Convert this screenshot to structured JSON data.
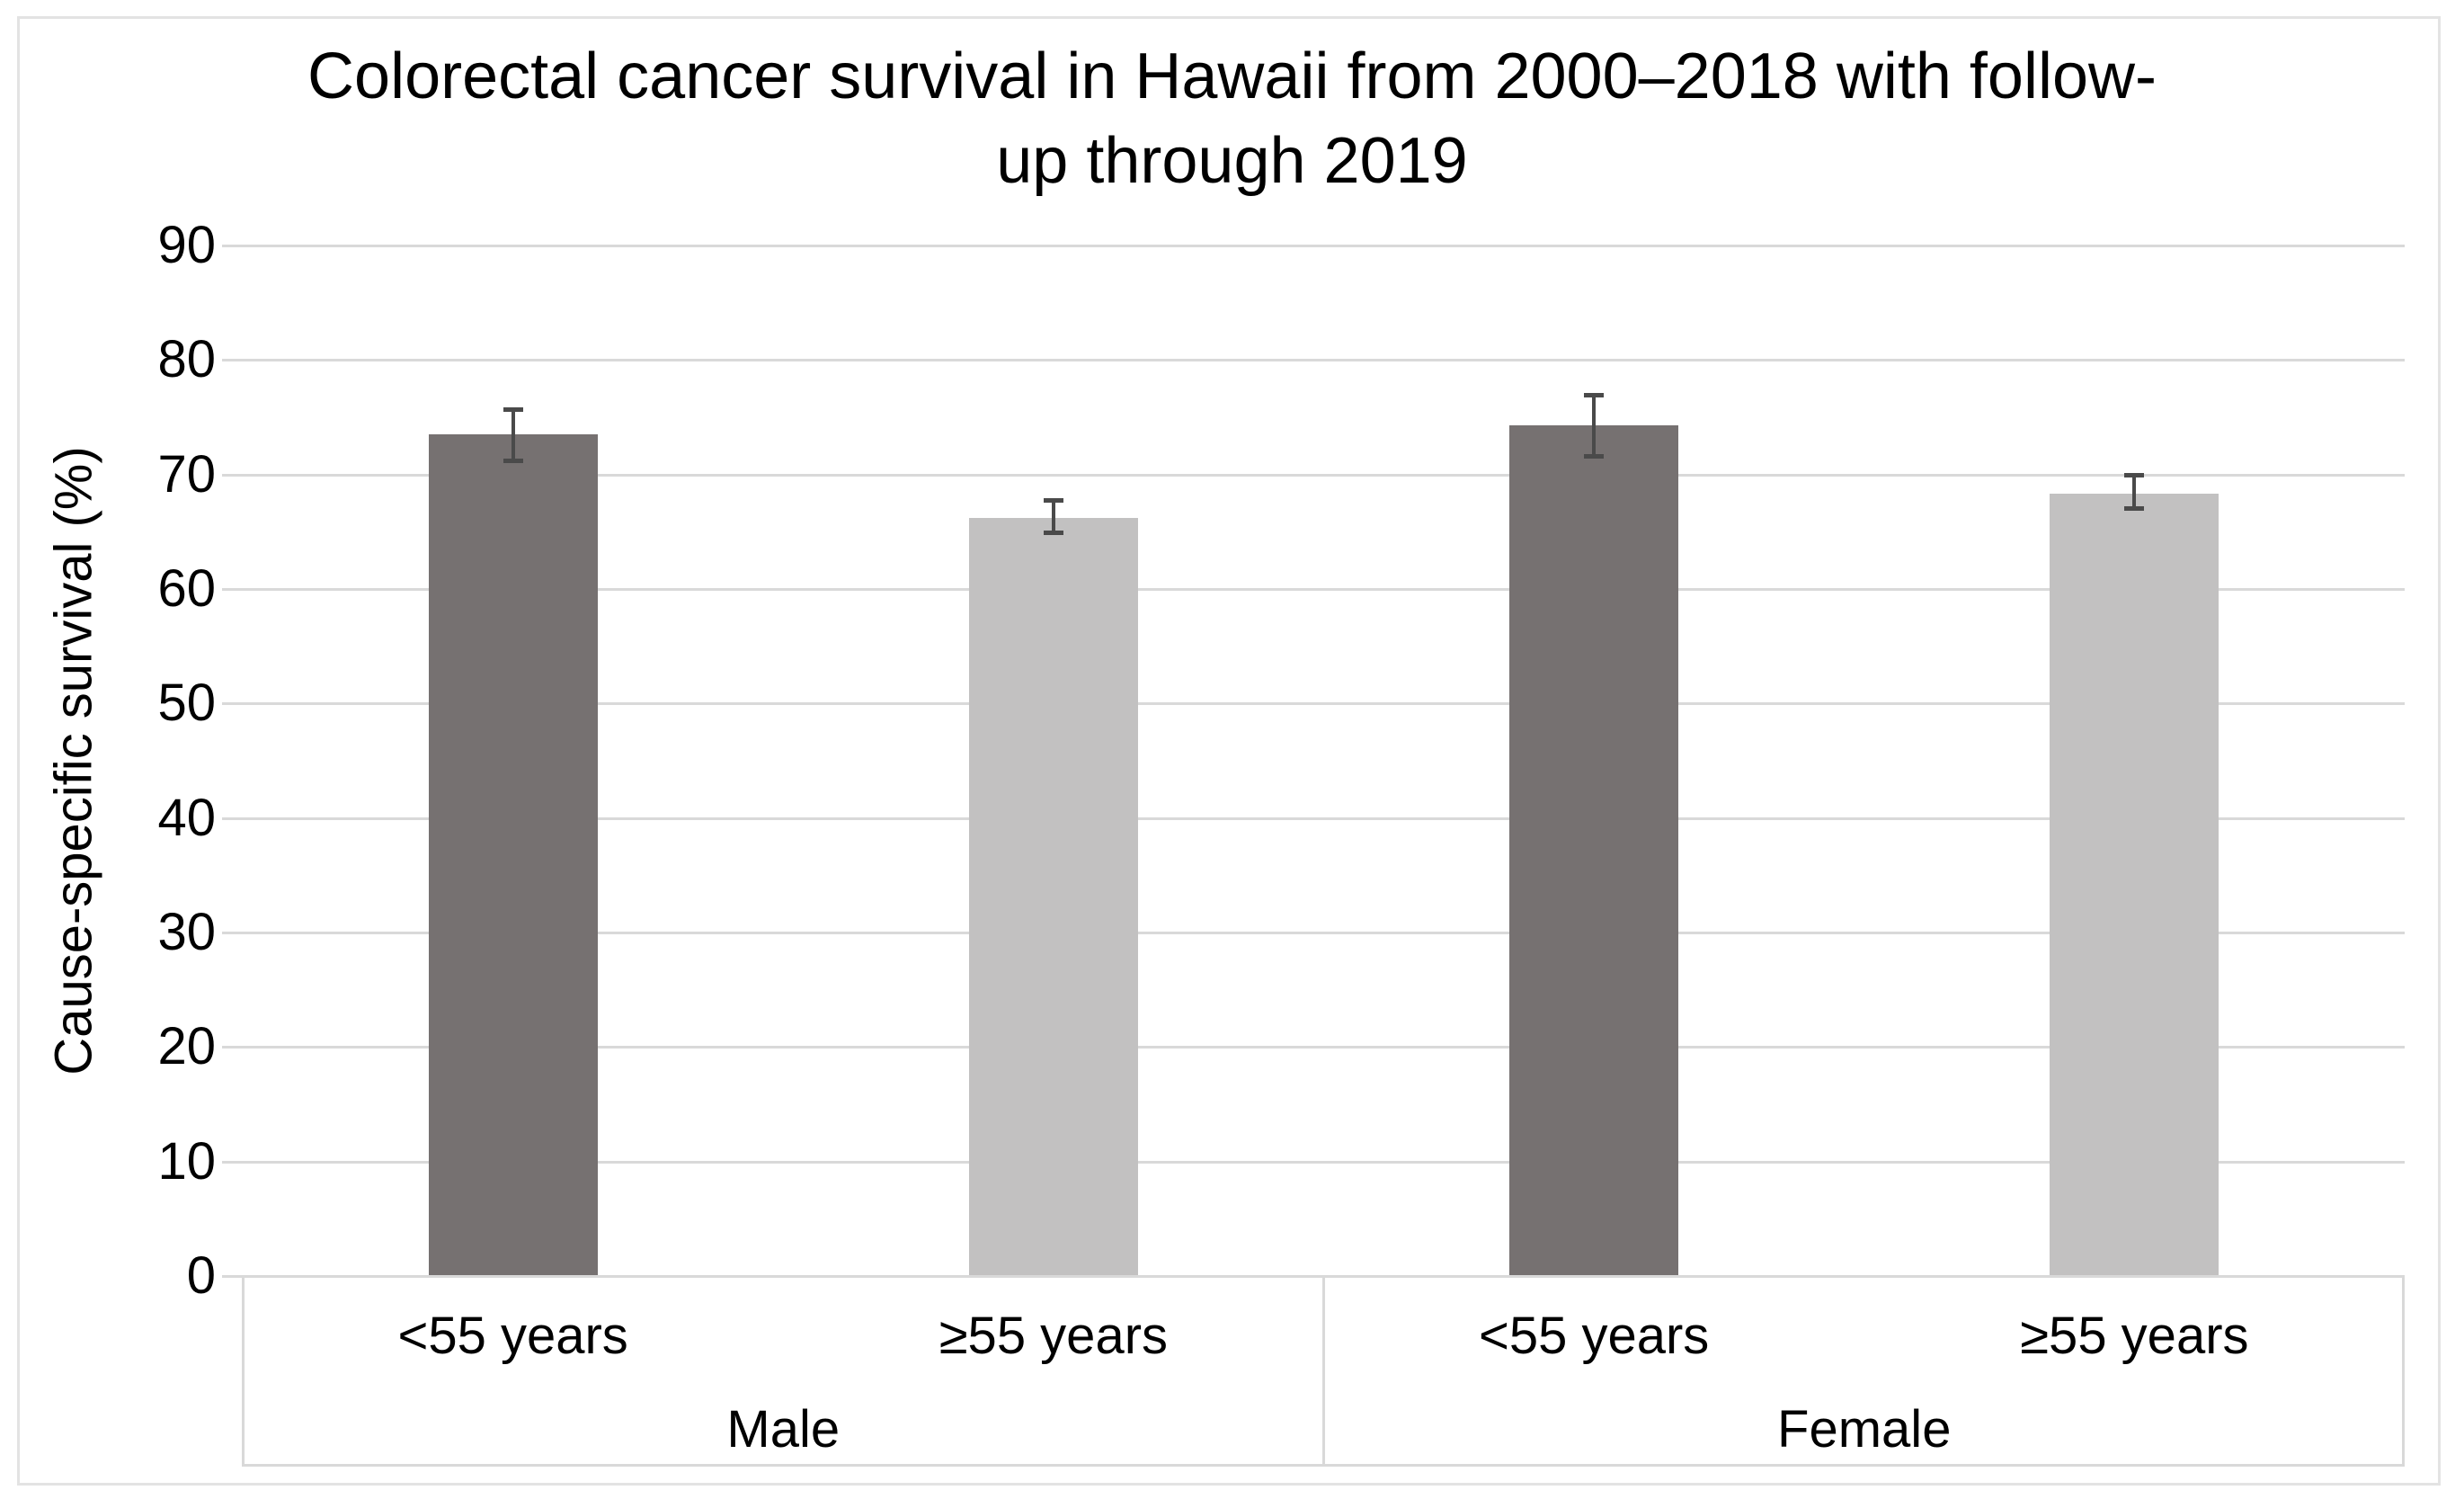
{
  "chart_data": {
    "type": "bar",
    "title": "Colorectal cancer survival in Hawaii from 2000–2018 with follow-up through 2019",
    "title_lines": [
      "Colorectal cancer survival in Hawaii from 2000–2018 with follow-",
      "up through 2019"
    ],
    "xlabel": "",
    "ylabel": "Cause-specific survival (%)",
    "ylim": [
      0,
      90
    ],
    "ytick_step": 10,
    "yticks": [
      0,
      10,
      20,
      30,
      40,
      50,
      60,
      70,
      80,
      90
    ],
    "grid": true,
    "legend": "none",
    "groups": [
      "Male",
      "Female"
    ],
    "categories": [
      "<55 years",
      "≥55 years",
      "<55 years",
      "≥55 years"
    ],
    "bars": [
      {
        "group": "Male",
        "category": "<55 years",
        "value": 73.5,
        "ci_low": 71.0,
        "ci_high": 75.9,
        "color": "#767171"
      },
      {
        "group": "Male",
        "category": "≥55 years",
        "value": 66.2,
        "ci_low": 64.7,
        "ci_high": 67.9,
        "color": "#c2c1c1"
      },
      {
        "group": "Female",
        "category": "<55 years",
        "value": 74.3,
        "ci_low": 71.4,
        "ci_high": 77.1,
        "color": "#767171"
      },
      {
        "group": "Female",
        "category": "≥55 years",
        "value": 68.3,
        "ci_low": 66.8,
        "ci_high": 70.1,
        "color": "#c2c1c1"
      }
    ],
    "error_bars": true,
    "colors": {
      "dark_bar": "#767171",
      "light_bar": "#c2c1c1",
      "gridline": "#d9d9d9",
      "error_bar": "#4a4a4a",
      "frame_border": "#e3e3e3",
      "text": "#000000",
      "background": "#ffffff"
    }
  }
}
